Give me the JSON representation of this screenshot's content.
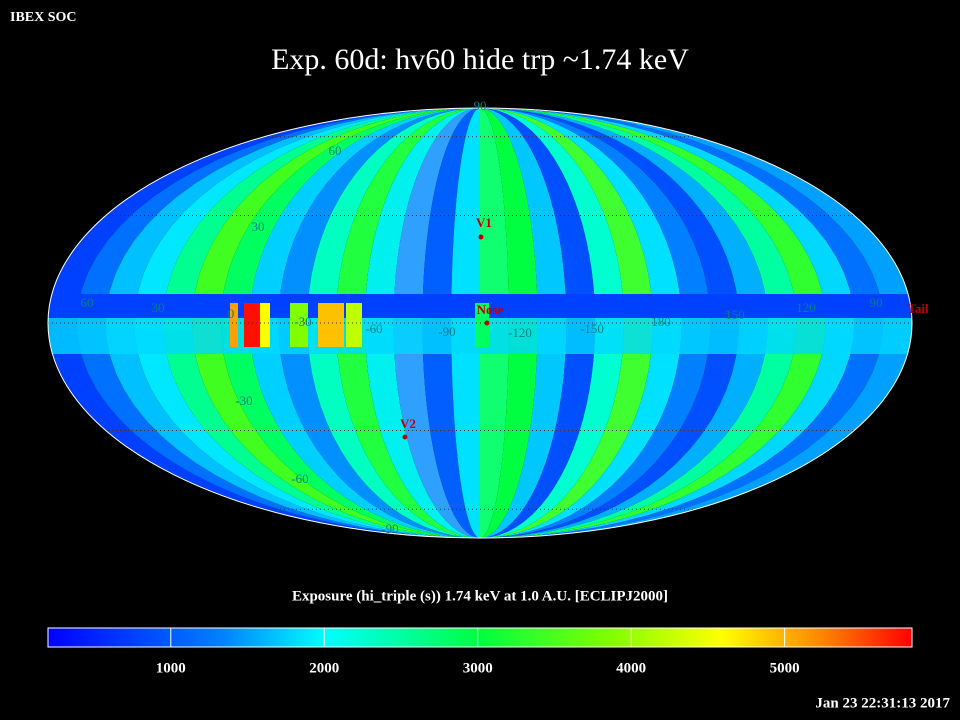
{
  "header": {
    "org": "IBEX SOC",
    "title": "Exp.   60d: hv60 hide trp ~1.74 keV",
    "timestamp": "Jan 23 22:31:13 2017"
  },
  "map": {
    "latitude_labels": [
      "90",
      "60",
      "30",
      "-30",
      "-60",
      "-90"
    ],
    "longitude_labels": [
      "60",
      "30",
      "0",
      "-30",
      "-60",
      "-90",
      "-120",
      "-150",
      "180",
      "150",
      "120",
      "90"
    ],
    "markers": [
      "V1",
      "Nose",
      "V2",
      "Tail"
    ]
  },
  "colorbar": {
    "label": "Exposure (hi_triple (s))  1.74 keV at 1.0 A.U. [ECLIPJ2000]",
    "lim": [
      200,
      5830
    ],
    "ticks": [
      1000,
      2000,
      3000,
      4000,
      5000
    ]
  }
}
